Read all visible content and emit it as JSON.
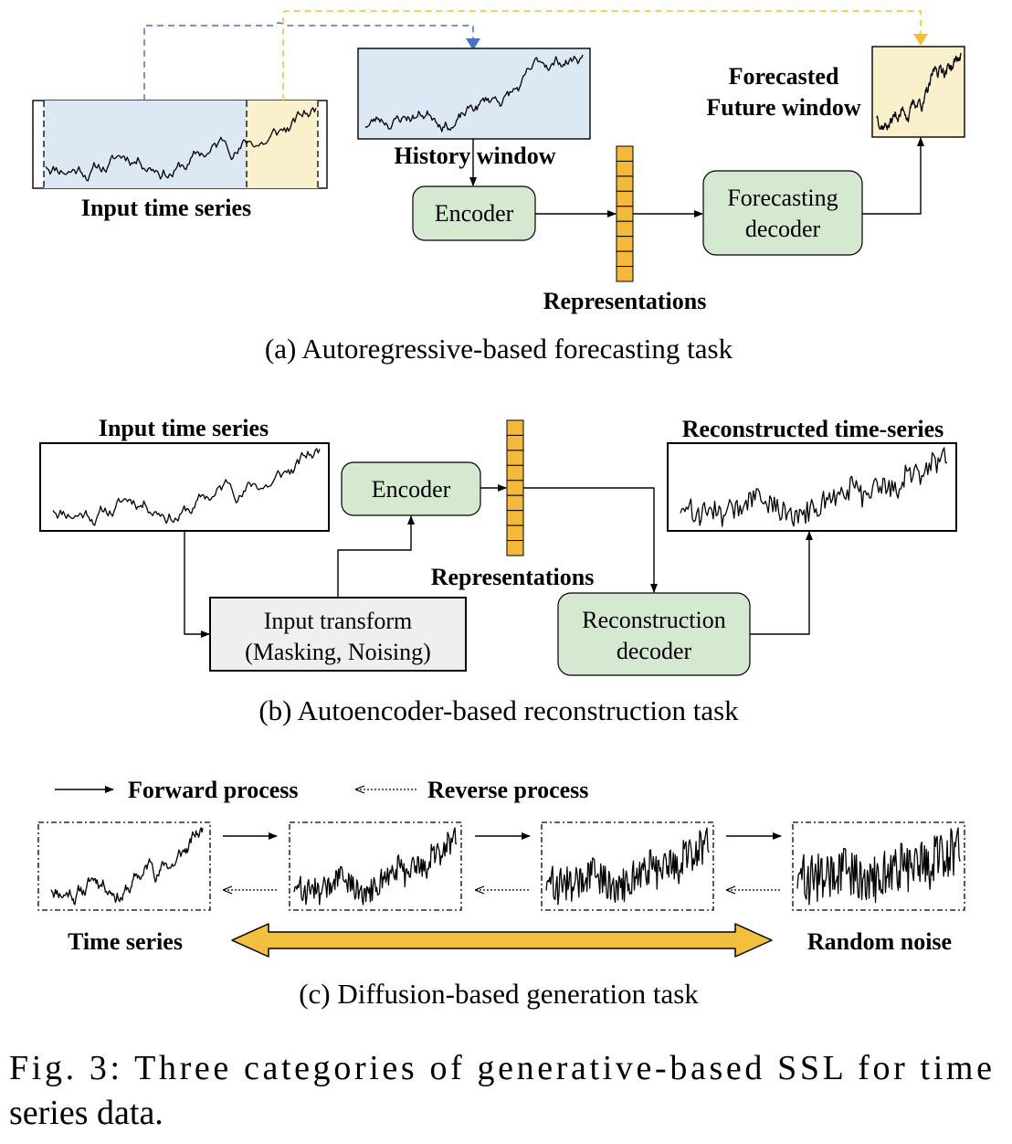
{
  "colors": {
    "history_fill": "#dce8f3",
    "future_fill": "#fbf0cc",
    "node_fill": "#d5e8d0",
    "representation_fill": "#f4b93a",
    "blue_dash": "#4a72c4",
    "yellow_dash": "#f0c030",
    "transform_fill": "#efefef",
    "double_arrow_fill": "#f3bf3e"
  },
  "panel_a": {
    "input_label": "Input time series",
    "history_label": "History window",
    "future_label_line1": "Forecasted",
    "future_label_line2": "Future window",
    "encoder": "Encoder",
    "decoder_line1": "Forecasting",
    "decoder_line2": "decoder",
    "representations": "Representations",
    "caption": "(a) Autoregressive-based forecasting task"
  },
  "panel_b": {
    "input_label": "Input time series",
    "encoder": "Encoder",
    "transform_line1": "Input transform",
    "transform_line2": "(Masking, Noising)",
    "representations": "Representations",
    "decoder_line1": "Reconstruction",
    "decoder_line2": "decoder",
    "output_label": "Reconstructed time-series",
    "caption": "(b) Autoencoder-based reconstruction task"
  },
  "panel_c": {
    "forward_label": "Forward process",
    "reverse_label": "Reverse process",
    "left_label": "Time series",
    "right_label": "Random noise",
    "caption": "(c) Diffusion-based generation task"
  },
  "figure_caption": {
    "line1": "Fig. 3: Three categories of generative-based SSL for time",
    "line2": "series data."
  }
}
